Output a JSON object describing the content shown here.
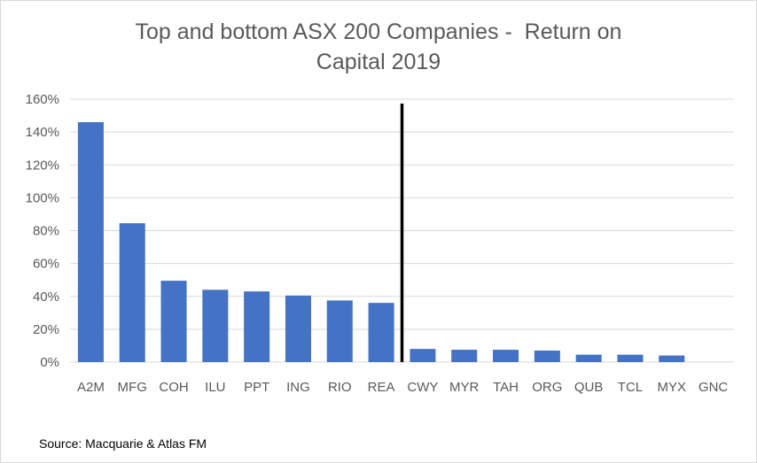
{
  "chart_data": {
    "type": "bar",
    "title_lines": [
      "Top and bottom ASX 200 Companies -  Return on",
      "Capital 2019"
    ],
    "categories": [
      "A2M",
      "MFG",
      "COH",
      "ILU",
      "PPT",
      "ING",
      "RIO",
      "REA",
      "CWY",
      "MYR",
      "TAH",
      "ORG",
      "QUB",
      "TCL",
      "MYX",
      "GNC"
    ],
    "values": [
      146,
      84.5,
      49.5,
      44,
      43,
      40.5,
      37.5,
      36,
      8,
      7.5,
      7.5,
      7,
      4.5,
      4.5,
      4,
      0
    ],
    "ylim": [
      0,
      160
    ],
    "y_ticks": [
      "0%",
      "20%",
      "40%",
      "60%",
      "80%",
      "100%",
      "120%",
      "140%",
      "160%"
    ],
    "divider_after_category": "REA",
    "grid": true,
    "bar_color": "#4472c4",
    "grid_color": "#d9d9d9",
    "divider_color": "#000000"
  },
  "source": "Source: Macquarie & Atlas FM"
}
